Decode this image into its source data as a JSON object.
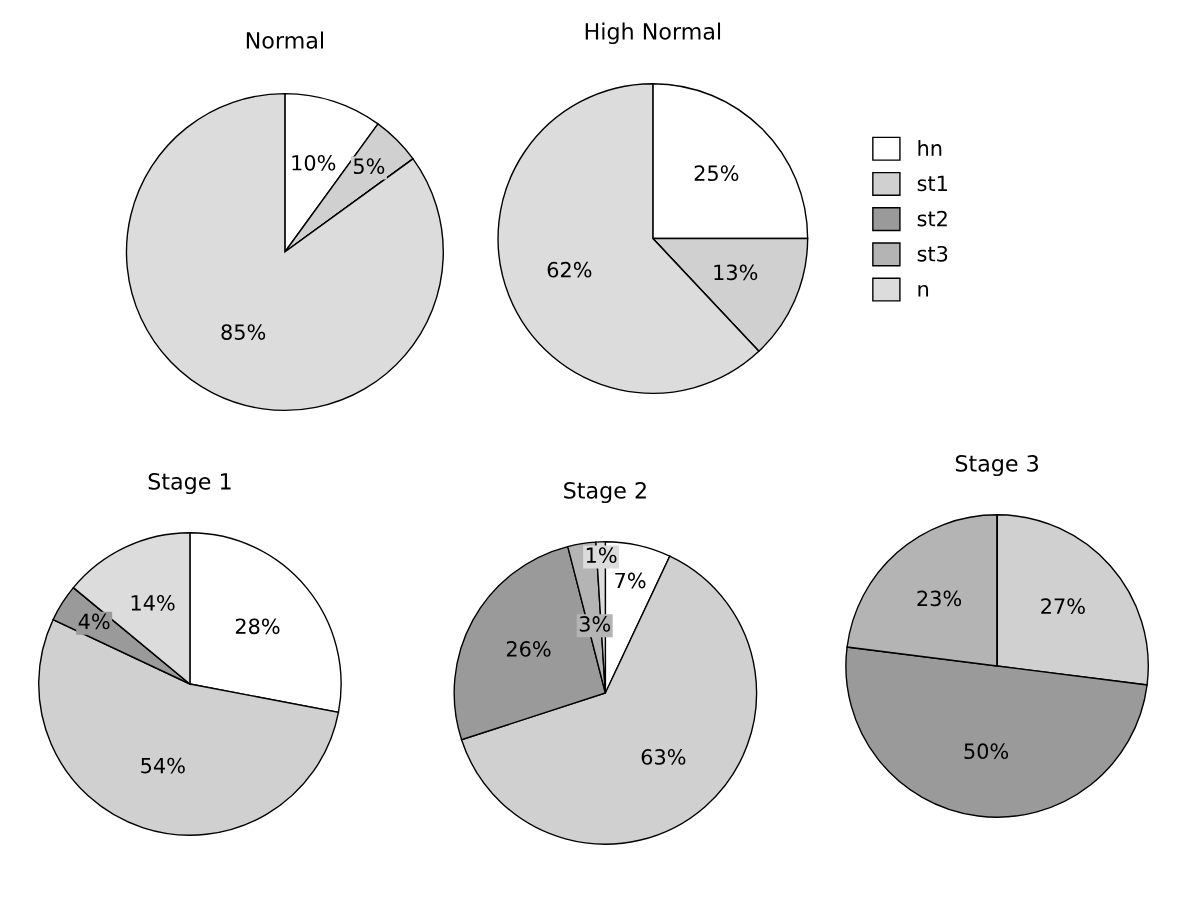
{
  "chart_data": [
    {
      "type": "pie",
      "title": "Normal",
      "values": [
        10,
        5,
        0,
        0,
        85
      ],
      "value_labels": [
        "10%",
        "5%",
        null,
        null,
        "85%"
      ],
      "colors": [
        "#ffffff",
        "#d0d0d0",
        "#9a9a9a",
        "#b4b4b4",
        "#dcdcdc"
      ]
    },
    {
      "type": "pie",
      "title": "High Normal",
      "categories": [
        "hn",
        "st1",
        "st2",
        "st3",
        "n"
      ],
      "values": [
        25,
        13,
        0,
        0,
        62
      ],
      "value_labels": [
        "25%",
        "13%",
        null,
        null,
        "62%"
      ],
      "colors": [
        "#ffffff",
        "#d0d0d0",
        "#9a9a9a",
        "#b4b4b4",
        "#dcdcdc"
      ],
      "legend": "right"
    },
    {
      "type": "pie",
      "title": "Stage 1",
      "values": [
        28,
        54,
        4,
        0,
        14
      ],
      "value_labels": [
        "28%",
        "54%",
        "4%",
        null,
        "14%"
      ],
      "colors": [
        "#ffffff",
        "#d0d0d0",
        "#9a9a9a",
        "#b4b4b4",
        "#dcdcdc"
      ]
    },
    {
      "type": "pie",
      "title": "Stage 2",
      "values": [
        7,
        63,
        26,
        3,
        1
      ],
      "value_labels": [
        "7%",
        "63%",
        "26%",
        "3%",
        "1%"
      ],
      "colors": [
        "#ffffff",
        "#d0d0d0",
        "#9a9a9a",
        "#b4b4b4",
        "#dcdcdc"
      ]
    },
    {
      "type": "pie",
      "title": "Stage 3",
      "values": [
        0,
        27,
        50,
        23,
        0
      ],
      "value_labels": [
        null,
        "27%",
        "50%",
        "23%",
        null
      ],
      "colors": [
        "#ffffff",
        "#d0d0d0",
        "#9a9a9a",
        "#b4b4b4",
        "#dcdcdc"
      ]
    }
  ]
}
